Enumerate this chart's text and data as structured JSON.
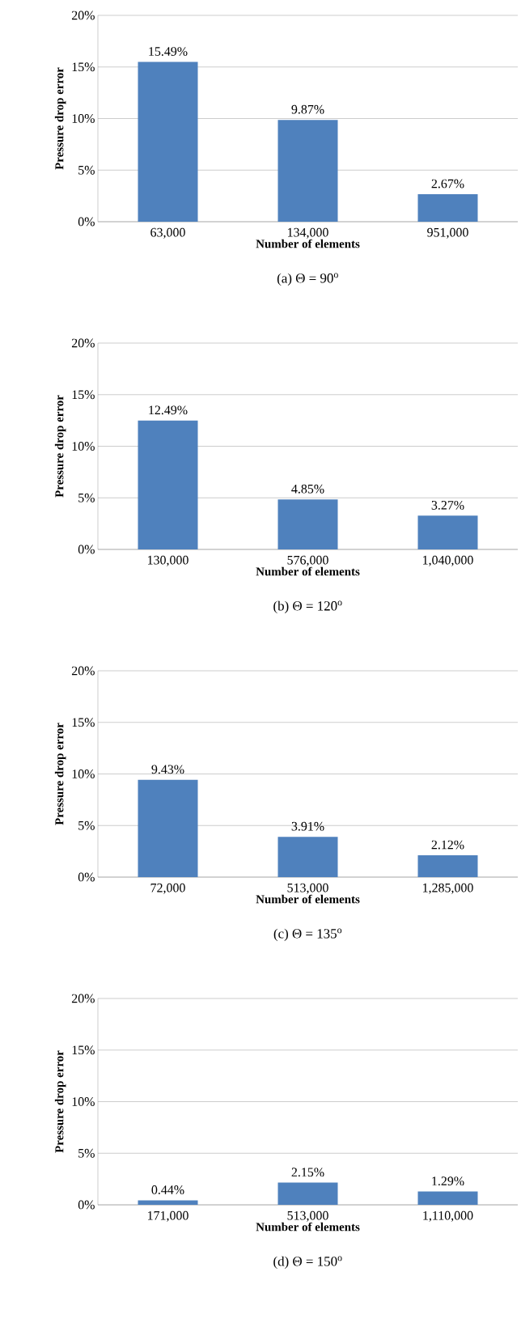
{
  "chart_data": [
    {
      "type": "bar",
      "title": "(a) Θ = 90$^{o}$",
      "xlabel": "Number of elements",
      "ylabel": "Pressure drop error",
      "categories": [
        "63,000",
        "134,000",
        "951,000"
      ],
      "values": [
        15.49,
        9.87,
        2.67
      ],
      "value_labels": [
        "15.49%",
        "9.87%",
        "2.67%"
      ],
      "color": "#4f81bd",
      "ylim": [
        0,
        20
      ],
      "yticks": [
        {
          "value": 0,
          "label": "0%"
        },
        {
          "value": 5,
          "label": "5%"
        },
        {
          "value": 10,
          "label": "10%"
        },
        {
          "value": 15,
          "label": "15%"
        },
        {
          "value": 20,
          "label": "20%"
        }
      ],
      "grid": "y"
    },
    {
      "type": "bar",
      "title": "(b) Θ = 120$^{o}$",
      "xlabel": "Number of elements",
      "ylabel": "Pressure drop error",
      "categories": [
        "130,000",
        "576,000",
        "1,040,000"
      ],
      "values": [
        12.49,
        4.85,
        3.27
      ],
      "value_labels": [
        "12.49%",
        "4.85%",
        "3.27%"
      ],
      "color": "#4f81bd",
      "ylim": [
        0,
        20
      ],
      "yticks": [
        {
          "value": 0,
          "label": "0%"
        },
        {
          "value": 5,
          "label": "5%"
        },
        {
          "value": 10,
          "label": "10%"
        },
        {
          "value": 15,
          "label": "15%"
        },
        {
          "value": 20,
          "label": "20%"
        }
      ],
      "grid": "y"
    },
    {
      "type": "bar",
      "title": "(c) Θ = 135$^{o}$",
      "xlabel": "Number of elements",
      "ylabel": "Pressure drop error",
      "categories": [
        "72,000",
        "513,000",
        "1,285,000"
      ],
      "values": [
        9.43,
        3.91,
        2.12
      ],
      "value_labels": [
        "9.43%",
        "3.91%",
        "2.12%"
      ],
      "color": "#4f81bd",
      "ylim": [
        0,
        20
      ],
      "yticks": [
        {
          "value": 0,
          "label": "0%"
        },
        {
          "value": 5,
          "label": "5%"
        },
        {
          "value": 10,
          "label": "10%"
        },
        {
          "value": 15,
          "label": "15%"
        },
        {
          "value": 20,
          "label": "20%"
        }
      ],
      "grid": "y"
    },
    {
      "type": "bar",
      "title": "(d) Θ = 150$^{o}$",
      "xlabel": "Number of elements",
      "ylabel": "Pressure drop error",
      "categories": [
        "171,000",
        "513,000",
        "1,110,000"
      ],
      "values": [
        0.44,
        2.15,
        1.29
      ],
      "value_labels": [
        "0.44%",
        "2.15%",
        "1.29%"
      ],
      "color": "#4f81bd",
      "ylim": [
        0,
        20
      ],
      "yticks": [
        {
          "value": 0,
          "label": "0%"
        },
        {
          "value": 5,
          "label": "5%"
        },
        {
          "value": 10,
          "label": "10%"
        },
        {
          "value": 15,
          "label": "15%"
        },
        {
          "value": 20,
          "label": "20%"
        }
      ],
      "grid": "y"
    }
  ]
}
